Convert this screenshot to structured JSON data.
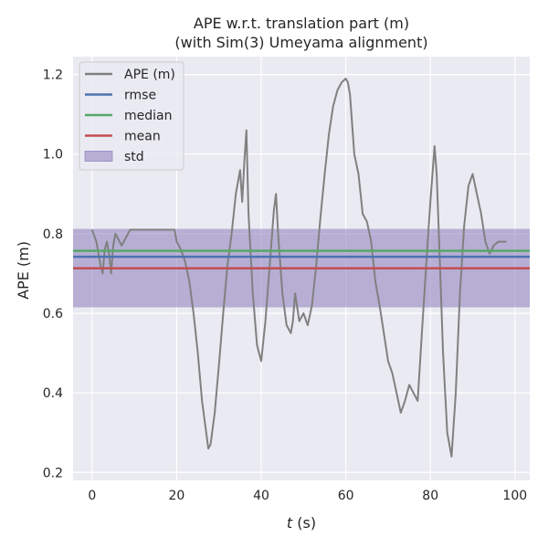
{
  "chart_data": {
    "type": "line",
    "title": "APE w.r.t. translation part (m)",
    "subtitle": "(with Sim(3) Umeyama alignment)",
    "xlabel_var": "t",
    "xlabel_unit": " (s)",
    "ylabel": "APE (m)",
    "xlim": [
      -4.5,
      103.5
    ],
    "ylim": [
      0.18,
      1.245
    ],
    "xticks": [
      0,
      20,
      40,
      60,
      80,
      100
    ],
    "yticks": [
      0.2,
      0.4,
      0.6,
      0.8,
      1.0,
      1.2
    ],
    "xtick_labels": [
      "0",
      "20",
      "40",
      "60",
      "80",
      "100"
    ],
    "ytick_labels": [
      "0.2",
      "0.4",
      "0.6",
      "0.8",
      "1.0",
      "1.2"
    ],
    "grid": true,
    "legend_position": "top-left",
    "series": [
      {
        "name": "APE (m)",
        "color": "#808080",
        "x": [
          0,
          1,
          2,
          2.5,
          3,
          3.5,
          4,
          4.5,
          5,
          5.5,
          6,
          7,
          8,
          9,
          10,
          15,
          19,
          19.5,
          20,
          21,
          22,
          23,
          24,
          25,
          26,
          27,
          27.5,
          28,
          29,
          30,
          31,
          32,
          33,
          34,
          35,
          35.5,
          36,
          36.5,
          37,
          38,
          39,
          40,
          41,
          42,
          43,
          43.5,
          44,
          45,
          46,
          47,
          47.5,
          48,
          49,
          50,
          51,
          52,
          53,
          54,
          55,
          56,
          57,
          58,
          59,
          60,
          60.5,
          61,
          62,
          63,
          64,
          65,
          66,
          67,
          68,
          69,
          70,
          71,
          72,
          73,
          74,
          75,
          76,
          77,
          78,
          79,
          80,
          81,
          81.5,
          82,
          83,
          84,
          85,
          86,
          87,
          88,
          89,
          90,
          91,
          92,
          93,
          94,
          95,
          96,
          97,
          98
        ],
        "y": [
          0.81,
          0.78,
          0.72,
          0.7,
          0.76,
          0.78,
          0.75,
          0.7,
          0.77,
          0.8,
          0.79,
          0.77,
          0.79,
          0.81,
          0.81,
          0.81,
          0.81,
          0.81,
          0.78,
          0.76,
          0.73,
          0.68,
          0.6,
          0.5,
          0.38,
          0.3,
          0.26,
          0.27,
          0.35,
          0.47,
          0.6,
          0.72,
          0.8,
          0.9,
          0.96,
          0.88,
          0.98,
          1.06,
          0.85,
          0.65,
          0.52,
          0.48,
          0.58,
          0.72,
          0.86,
          0.9,
          0.8,
          0.65,
          0.57,
          0.55,
          0.58,
          0.65,
          0.58,
          0.6,
          0.57,
          0.62,
          0.72,
          0.84,
          0.95,
          1.05,
          1.12,
          1.16,
          1.18,
          1.19,
          1.18,
          1.15,
          1.0,
          0.95,
          0.85,
          0.83,
          0.78,
          0.68,
          0.62,
          0.55,
          0.48,
          0.45,
          0.4,
          0.35,
          0.38,
          0.42,
          0.4,
          0.38,
          0.55,
          0.72,
          0.88,
          1.02,
          0.95,
          0.8,
          0.5,
          0.3,
          0.24,
          0.4,
          0.65,
          0.82,
          0.92,
          0.95,
          0.9,
          0.85,
          0.78,
          0.75,
          0.77,
          0.78,
          0.78,
          0.78
        ]
      },
      {
        "name": "rmse",
        "color": "#4c72b0",
        "value": 0.742
      },
      {
        "name": "median",
        "color": "#55a868",
        "value": 0.757
      },
      {
        "name": "mean",
        "color": "#c44e52",
        "value": 0.713
      },
      {
        "name": "std",
        "color": "#8172b3",
        "range": [
          0.615,
          0.812
        ]
      }
    ]
  }
}
